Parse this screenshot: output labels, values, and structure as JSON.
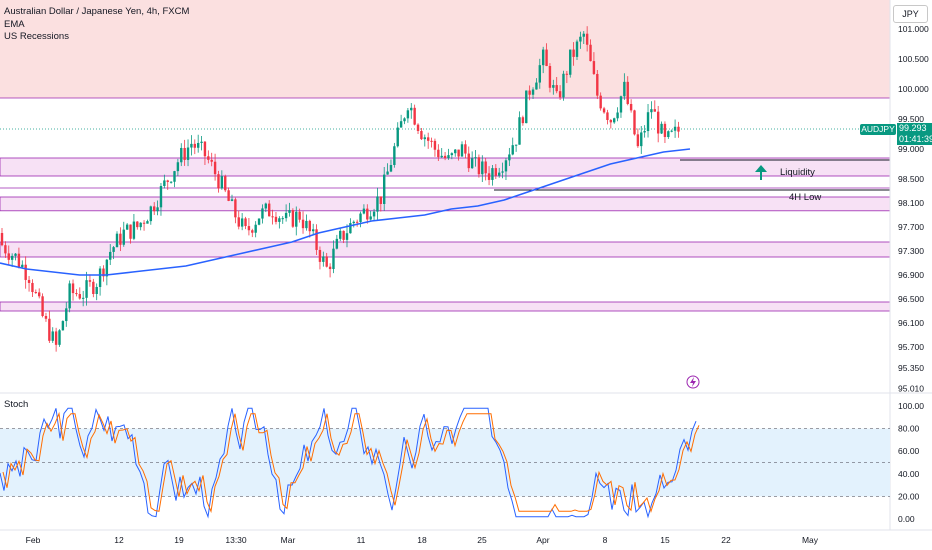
{
  "legend": {
    "symbol_title": "Australian Dollar / Japanese Yen, 4h, FXCM",
    "indicator_ema": "EMA",
    "indicator_recessions": "US Recessions",
    "stoch_label": "Stoch"
  },
  "currency": "JPY",
  "last_price": {
    "symbol": "AUDJPY",
    "value": "99.293",
    "countdown": "01:41:39"
  },
  "annotations": {
    "liquidity": "Liquidity",
    "low_4h": "4H Low"
  },
  "price_axis_labels": [
    "101.000",
    "100.500",
    "100.000",
    "99.500",
    "99.000",
    "98.500",
    "98.100",
    "97.700",
    "97.300",
    "96.900",
    "96.500",
    "96.100",
    "95.700",
    "95.350",
    "95.010"
  ],
  "stoch_axis_labels": [
    "100.00",
    "80.00",
    "60.00",
    "40.00",
    "20.00",
    "0.00"
  ],
  "time_axis_labels": [
    "Feb",
    "12",
    "19",
    "13:30",
    "Mar",
    "11",
    "18",
    "25",
    "Apr",
    "8",
    "15",
    "22",
    "May"
  ],
  "colors": {
    "up": "#089981",
    "down": "#f23645",
    "ema": "#2962ff",
    "zone_fill": "#f7e1f5",
    "zone_border": "#9c27b0",
    "recession_fill": "#fbe0e0",
    "stoch_band": "#e3f2fd",
    "stoch_k": "#2962ff",
    "stoch_d": "#ff6d00"
  },
  "chart_data": {
    "type": "candlestick",
    "symbol": "AUDJPY",
    "timeframe": "4h",
    "approx_closes": [
      97.4,
      97.2,
      96.9,
      96.2,
      95.7,
      96.6,
      96.6,
      96.8,
      97.3,
      97.6,
      97.7,
      98.0,
      98.4,
      98.8,
      99.1,
      98.9,
      98.5,
      98.0,
      97.6,
      97.9,
      98.0,
      97.8,
      97.9,
      97.5,
      97.0,
      97.5,
      97.8,
      98.0,
      98.2,
      99.0,
      99.8,
      99.3,
      99.0,
      98.8,
      99.0,
      98.7,
      98.6,
      98.8,
      99.2,
      100.0,
      100.5,
      99.8,
      100.5,
      100.9,
      99.9,
      99.5,
      100.0,
      99.0,
      99.7,
      99.1,
      99.3
    ],
    "ema_approx": [
      97.1,
      97.0,
      96.95,
      96.9,
      96.9,
      96.95,
      97.0,
      97.05,
      97.15,
      97.25,
      97.35,
      97.45,
      97.6,
      97.7,
      97.8,
      97.85,
      97.9,
      98.0,
      98.05,
      98.15,
      98.3,
      98.45,
      98.6,
      98.75,
      98.85,
      98.95,
      99.0
    ],
    "zones": [
      {
        "name": "upper",
        "from": 98.85,
        "to": 98.55
      },
      {
        "name": "4H Low",
        "from": 98.2,
        "to": 97.97
      },
      {
        "name": "mid",
        "from": 97.45,
        "to": 97.2
      },
      {
        "name": "lower",
        "from": 96.45,
        "to": 96.3
      }
    ],
    "level_lines": [
      99.85,
      98.35
    ],
    "stochastic": {
      "overbought": 80,
      "mid": 50,
      "oversold": 20
    }
  }
}
